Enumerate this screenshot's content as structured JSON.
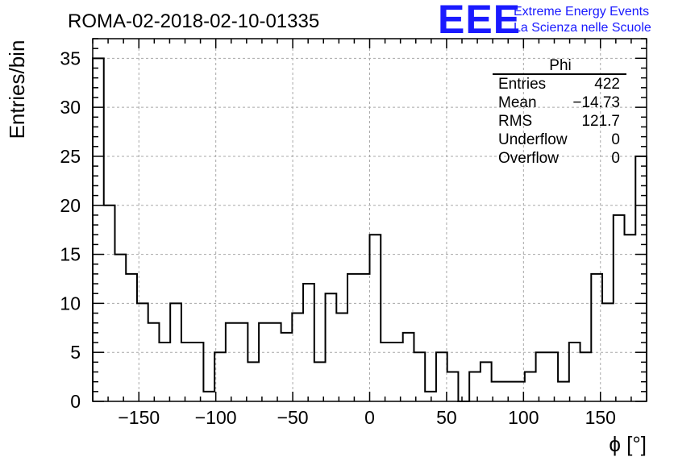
{
  "logo": {
    "mark": "EEE",
    "line1": "Extreme Energy Events",
    "line2": "La Scienza nelle Scuole",
    "color": "#1a1aff"
  },
  "chart_data": {
    "type": "histogram",
    "title": "ROMA-02-2018-02-10-01335",
    "xlabel": "ϕ [°]",
    "ylabel": "Entries/bin",
    "xlim": [
      -180,
      180
    ],
    "ylim": [
      0,
      37
    ],
    "bin_width": 7.2,
    "x_ticks": [
      -150,
      -100,
      -50,
      0,
      50,
      100,
      150
    ],
    "y_ticks": [
      0,
      5,
      10,
      15,
      20,
      25,
      30,
      35
    ],
    "grid": true,
    "line_color": "#000000",
    "bins": [
      {
        "x0": -180.0,
        "count": 35
      },
      {
        "x0": -172.8,
        "count": 20
      },
      {
        "x0": -165.6,
        "count": 15
      },
      {
        "x0": -158.4,
        "count": 13
      },
      {
        "x0": -151.2,
        "count": 10
      },
      {
        "x0": -144.0,
        "count": 8
      },
      {
        "x0": -136.8,
        "count": 6
      },
      {
        "x0": -129.6,
        "count": 10
      },
      {
        "x0": -122.4,
        "count": 6
      },
      {
        "x0": -115.2,
        "count": 6
      },
      {
        "x0": -108.0,
        "count": 1
      },
      {
        "x0": -100.8,
        "count": 5
      },
      {
        "x0": -93.6,
        "count": 8
      },
      {
        "x0": -86.4,
        "count": 8
      },
      {
        "x0": -79.2,
        "count": 4
      },
      {
        "x0": -72.0,
        "count": 8
      },
      {
        "x0": -64.8,
        "count": 8
      },
      {
        "x0": -57.6,
        "count": 7
      },
      {
        "x0": -50.4,
        "count": 9
      },
      {
        "x0": -43.2,
        "count": 12
      },
      {
        "x0": -36.0,
        "count": 4
      },
      {
        "x0": -28.8,
        "count": 11
      },
      {
        "x0": -21.6,
        "count": 9
      },
      {
        "x0": -14.4,
        "count": 13
      },
      {
        "x0": -7.2,
        "count": 13
      },
      {
        "x0": 0.0,
        "count": 17
      },
      {
        "x0": 7.2,
        "count": 6
      },
      {
        "x0": 14.4,
        "count": 6
      },
      {
        "x0": 21.6,
        "count": 7
      },
      {
        "x0": 28.8,
        "count": 5
      },
      {
        "x0": 36.0,
        "count": 1
      },
      {
        "x0": 43.2,
        "count": 5
      },
      {
        "x0": 50.4,
        "count": 3
      },
      {
        "x0": 57.6,
        "count": 0
      },
      {
        "x0": 64.8,
        "count": 3
      },
      {
        "x0": 72.0,
        "count": 4
      },
      {
        "x0": 79.2,
        "count": 2
      },
      {
        "x0": 86.4,
        "count": 2
      },
      {
        "x0": 93.6,
        "count": 2
      },
      {
        "x0": 100.8,
        "count": 3
      },
      {
        "x0": 108.0,
        "count": 5
      },
      {
        "x0": 115.2,
        "count": 5
      },
      {
        "x0": 122.4,
        "count": 2
      },
      {
        "x0": 129.6,
        "count": 6
      },
      {
        "x0": 136.8,
        "count": 5
      },
      {
        "x0": 144.0,
        "count": 13
      },
      {
        "x0": 151.2,
        "count": 10
      },
      {
        "x0": 158.4,
        "count": 19
      },
      {
        "x0": 165.6,
        "count": 17
      },
      {
        "x0": 172.8,
        "count": 25
      }
    ],
    "stats_box": {
      "title": "Phi",
      "rows": [
        {
          "label": "Entries",
          "value": "422"
        },
        {
          "label": "Mean",
          "value": "−14.73"
        },
        {
          "label": "RMS",
          "value": "121.7"
        },
        {
          "label": "Underflow",
          "value": "0"
        },
        {
          "label": "Overflow",
          "value": "0"
        }
      ]
    }
  }
}
